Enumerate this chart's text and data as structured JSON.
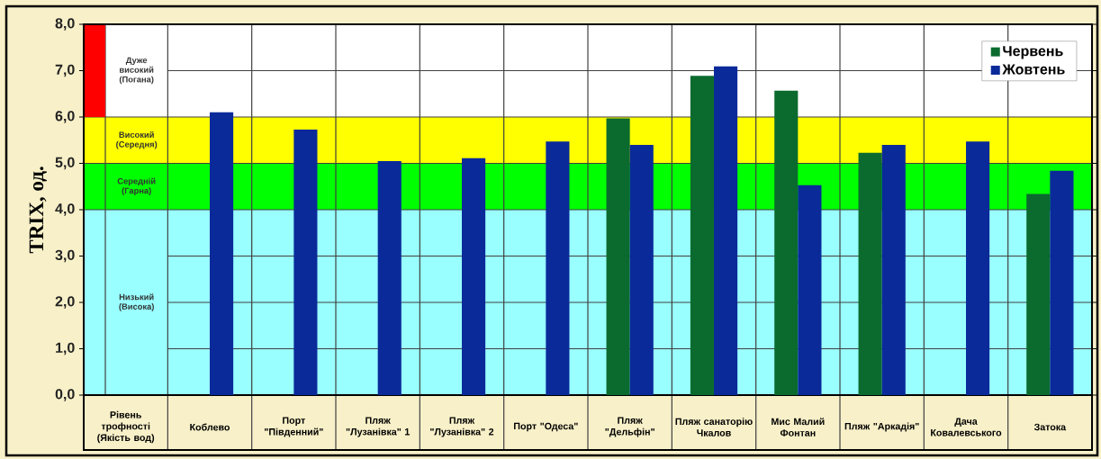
{
  "chart_data": {
    "type": "bar",
    "ylabel": "TRIX, од.",
    "categories": [
      "Рівень трофності (Якість вод)",
      "Коблево",
      "Порт \"Південний\"",
      "Пляж \"Лузанівка\" 1",
      "Пляж \"Лузанівка\" 2",
      "Порт \"Одеса\"",
      "Пляж \"Дельфін\"",
      "Пляж санаторію Чкалов",
      "Мис Малий Фонтан",
      "Пляж \"Аркадія\"",
      "Дача Ковалевського",
      "Затока"
    ],
    "series": [
      {
        "name": "Червень",
        "color": "#0b6b2e",
        "values": [
          null,
          null,
          null,
          null,
          null,
          null,
          5.97,
          6.89,
          6.57,
          5.23,
          null,
          4.34
        ]
      },
      {
        "name": "Жовтень",
        "color": "#0a2a9a",
        "values": [
          null,
          6.1,
          5.73,
          5.05,
          5.11,
          5.47,
          5.4,
          7.09,
          4.53,
          5.4,
          5.47,
          4.84
        ]
      }
    ],
    "ylim": [
      0,
      8
    ],
    "yticks": [
      {
        "value": 0,
        "label": "0,0"
      },
      {
        "value": 1,
        "label": "1,0"
      },
      {
        "value": 2,
        "label": "2,0"
      },
      {
        "value": 3,
        "label": "3,0"
      },
      {
        "value": 4,
        "label": "4,0"
      },
      {
        "value": 5,
        "label": "5,0"
      },
      {
        "value": 6,
        "label": "6,0"
      },
      {
        "value": 7,
        "label": "7,0"
      },
      {
        "value": 8,
        "label": "8,0"
      }
    ],
    "bands": [
      {
        "axis": "y",
        "from": 0,
        "to": 4,
        "label": "Низький (Висока)",
        "color": "#99ffff"
      },
      {
        "axis": "y",
        "from": 4,
        "to": 5,
        "label": "Середній (Гарна)",
        "color": "#00ff00"
      },
      {
        "axis": "y",
        "from": 5,
        "to": 6,
        "label": "Високий (Середня)",
        "color": "#ffff00"
      },
      {
        "axis": "y",
        "from": 6,
        "to": 8,
        "label": "Дуже високий (Погана)",
        "color": "#ffffff"
      }
    ],
    "grid": true,
    "legend": "top right"
  }
}
